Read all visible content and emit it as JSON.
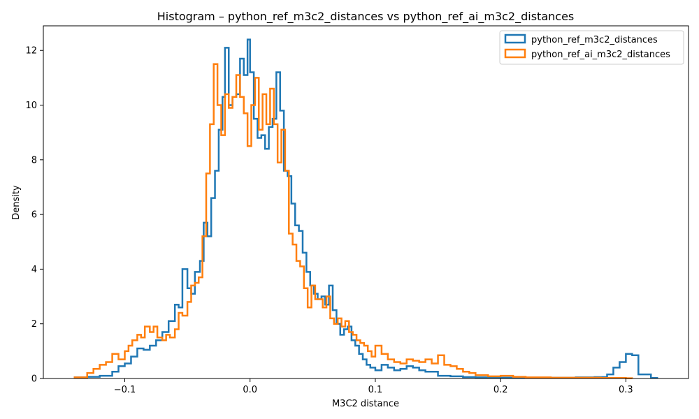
{
  "chart_data": {
    "type": "histogram",
    "title": "Histogram – python_ref_m3c2_distances vs python_ref_ai_m3c2_distances",
    "xlabel": "M3C2 distance",
    "ylabel": "Density",
    "xlim": [
      -0.165,
      0.35
    ],
    "ylim": [
      0,
      12.9
    ],
    "xticks": [
      -0.1,
      0.0,
      0.1,
      0.2,
      0.3
    ],
    "xtick_labels": [
      "−0.1",
      "0.0",
      "0.1",
      "0.2",
      "0.3"
    ],
    "yticks": [
      0,
      2,
      4,
      6,
      8,
      10,
      12
    ],
    "ytick_labels": [
      "0",
      "2",
      "4",
      "6",
      "8",
      "10",
      "12"
    ],
    "grid": false,
    "legend_position": "top-right",
    "series": [
      {
        "name": "python_ref_m3c2_distances",
        "color": "#1f77b4",
        "points": [
          [
            -0.14,
            0.04
          ],
          [
            -0.13,
            0.06
          ],
          [
            -0.12,
            0.1
          ],
          [
            -0.11,
            0.25
          ],
          [
            -0.105,
            0.45
          ],
          [
            -0.1,
            0.55
          ],
          [
            -0.095,
            0.8
          ],
          [
            -0.09,
            1.1
          ],
          [
            -0.085,
            1.05
          ],
          [
            -0.08,
            1.2
          ],
          [
            -0.075,
            1.4
          ],
          [
            -0.07,
            1.7
          ],
          [
            -0.065,
            2.1
          ],
          [
            -0.06,
            2.7
          ],
          [
            -0.057,
            2.6
          ],
          [
            -0.054,
            4.0
          ],
          [
            -0.05,
            3.3
          ],
          [
            -0.047,
            3.1
          ],
          [
            -0.044,
            3.9
          ],
          [
            -0.04,
            4.3
          ],
          [
            -0.037,
            5.7
          ],
          [
            -0.034,
            5.2
          ],
          [
            -0.031,
            6.6
          ],
          [
            -0.028,
            7.6
          ],
          [
            -0.025,
            9.1
          ],
          [
            -0.022,
            10.3
          ],
          [
            -0.02,
            12.1
          ],
          [
            -0.017,
            10.0
          ],
          [
            -0.014,
            10.3
          ],
          [
            -0.011,
            10.4
          ],
          [
            -0.008,
            11.7
          ],
          [
            -0.005,
            11.1
          ],
          [
            -0.002,
            12.4
          ],
          [
            0.0,
            11.2
          ],
          [
            0.003,
            9.5
          ],
          [
            0.006,
            8.8
          ],
          [
            0.009,
            8.9
          ],
          [
            0.012,
            8.4
          ],
          [
            0.015,
            9.2
          ],
          [
            0.018,
            9.5
          ],
          [
            0.021,
            11.2
          ],
          [
            0.024,
            9.8
          ],
          [
            0.027,
            7.6
          ],
          [
            0.03,
            7.4
          ],
          [
            0.033,
            6.4
          ],
          [
            0.036,
            5.6
          ],
          [
            0.039,
            5.4
          ],
          [
            0.042,
            4.6
          ],
          [
            0.045,
            3.9
          ],
          [
            0.048,
            3.4
          ],
          [
            0.051,
            3.1
          ],
          [
            0.054,
            2.9
          ],
          [
            0.057,
            3.0
          ],
          [
            0.06,
            2.7
          ],
          [
            0.063,
            3.4
          ],
          [
            0.066,
            2.5
          ],
          [
            0.069,
            2.0
          ],
          [
            0.072,
            1.6
          ],
          [
            0.075,
            1.8
          ],
          [
            0.078,
            1.9
          ],
          [
            0.081,
            1.4
          ],
          [
            0.084,
            1.2
          ],
          [
            0.087,
            0.9
          ],
          [
            0.09,
            0.7
          ],
          [
            0.093,
            0.5
          ],
          [
            0.096,
            0.4
          ],
          [
            0.1,
            0.3
          ],
          [
            0.105,
            0.5
          ],
          [
            0.11,
            0.4
          ],
          [
            0.115,
            0.3
          ],
          [
            0.12,
            0.35
          ],
          [
            0.125,
            0.45
          ],
          [
            0.13,
            0.4
          ],
          [
            0.135,
            0.3
          ],
          [
            0.14,
            0.25
          ],
          [
            0.15,
            0.1
          ],
          [
            0.16,
            0.08
          ],
          [
            0.17,
            0.05
          ],
          [
            0.18,
            0.04
          ],
          [
            0.19,
            0.03
          ],
          [
            0.2,
            0.03
          ],
          [
            0.22,
            0.02
          ],
          [
            0.24,
            0.03
          ],
          [
            0.26,
            0.04
          ],
          [
            0.275,
            0.05
          ],
          [
            0.285,
            0.15
          ],
          [
            0.29,
            0.4
          ],
          [
            0.295,
            0.6
          ],
          [
            0.3,
            0.9
          ],
          [
            0.305,
            0.85
          ],
          [
            0.31,
            0.15
          ],
          [
            0.32,
            0.02
          ]
        ]
      },
      {
        "name": "python_ref_ai_m3c2_distances",
        "color": "#ff7f0e",
        "points": [
          [
            -0.14,
            0.04
          ],
          [
            -0.13,
            0.2
          ],
          [
            -0.125,
            0.35
          ],
          [
            -0.12,
            0.5
          ],
          [
            -0.115,
            0.6
          ],
          [
            -0.11,
            0.9
          ],
          [
            -0.105,
            0.7
          ],
          [
            -0.1,
            1.0
          ],
          [
            -0.097,
            1.2
          ],
          [
            -0.094,
            1.4
          ],
          [
            -0.09,
            1.6
          ],
          [
            -0.087,
            1.5
          ],
          [
            -0.084,
            1.9
          ],
          [
            -0.08,
            1.7
          ],
          [
            -0.077,
            1.9
          ],
          [
            -0.074,
            1.5
          ],
          [
            -0.07,
            1.4
          ],
          [
            -0.067,
            1.6
          ],
          [
            -0.064,
            1.5
          ],
          [
            -0.06,
            1.8
          ],
          [
            -0.057,
            2.4
          ],
          [
            -0.054,
            2.3
          ],
          [
            -0.05,
            2.8
          ],
          [
            -0.047,
            3.4
          ],
          [
            -0.044,
            3.5
          ],
          [
            -0.041,
            3.7
          ],
          [
            -0.038,
            5.2
          ],
          [
            -0.035,
            7.5
          ],
          [
            -0.032,
            9.3
          ],
          [
            -0.029,
            11.5
          ],
          [
            -0.026,
            10.0
          ],
          [
            -0.023,
            8.9
          ],
          [
            -0.02,
            10.4
          ],
          [
            -0.017,
            9.9
          ],
          [
            -0.014,
            10.3
          ],
          [
            -0.011,
            11.1
          ],
          [
            -0.008,
            10.3
          ],
          [
            -0.005,
            9.7
          ],
          [
            -0.002,
            8.5
          ],
          [
            0.001,
            10.0
          ],
          [
            0.004,
            11.0
          ],
          [
            0.007,
            9.1
          ],
          [
            0.01,
            10.4
          ],
          [
            0.013,
            9.3
          ],
          [
            0.016,
            10.6
          ],
          [
            0.019,
            9.3
          ],
          [
            0.022,
            7.9
          ],
          [
            0.025,
            9.1
          ],
          [
            0.028,
            7.6
          ],
          [
            0.031,
            5.3
          ],
          [
            0.034,
            4.9
          ],
          [
            0.037,
            4.3
          ],
          [
            0.04,
            4.1
          ],
          [
            0.043,
            3.3
          ],
          [
            0.046,
            2.6
          ],
          [
            0.049,
            3.4
          ],
          [
            0.052,
            2.9
          ],
          [
            0.055,
            2.9
          ],
          [
            0.058,
            2.6
          ],
          [
            0.061,
            3.0
          ],
          [
            0.064,
            2.2
          ],
          [
            0.067,
            2.0
          ],
          [
            0.07,
            2.2
          ],
          [
            0.073,
            1.9
          ],
          [
            0.076,
            2.1
          ],
          [
            0.079,
            1.7
          ],
          [
            0.082,
            1.6
          ],
          [
            0.085,
            1.4
          ],
          [
            0.088,
            1.3
          ],
          [
            0.091,
            1.2
          ],
          [
            0.094,
            1.0
          ],
          [
            0.097,
            0.8
          ],
          [
            0.1,
            1.2
          ],
          [
            0.105,
            0.9
          ],
          [
            0.11,
            0.7
          ],
          [
            0.115,
            0.6
          ],
          [
            0.12,
            0.55
          ],
          [
            0.125,
            0.7
          ],
          [
            0.13,
            0.65
          ],
          [
            0.135,
            0.6
          ],
          [
            0.14,
            0.7
          ],
          [
            0.145,
            0.55
          ],
          [
            0.15,
            0.85
          ],
          [
            0.155,
            0.5
          ],
          [
            0.16,
            0.45
          ],
          [
            0.165,
            0.35
          ],
          [
            0.17,
            0.25
          ],
          [
            0.175,
            0.2
          ],
          [
            0.18,
            0.12
          ],
          [
            0.19,
            0.08
          ],
          [
            0.2,
            0.1
          ],
          [
            0.21,
            0.06
          ],
          [
            0.22,
            0.04
          ],
          [
            0.24,
            0.03
          ],
          [
            0.26,
            0.03
          ],
          [
            0.28,
            0.02
          ],
          [
            0.3,
            0.01
          ]
        ]
      }
    ]
  }
}
